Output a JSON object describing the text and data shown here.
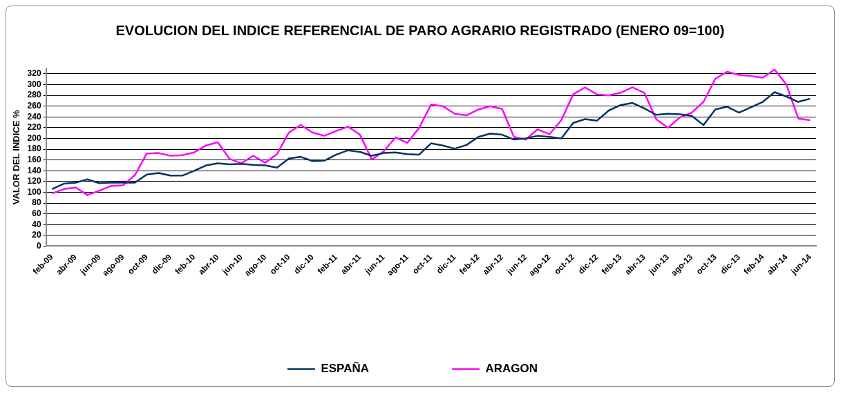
{
  "chart_data": {
    "type": "line",
    "title": "EVOLUCION DEL INDICE REFERENCIAL DE PARO AGRARIO REGISTRADO (ENERO 09=100)",
    "ylabel": "VALOR DEL INDICE %",
    "categories": [
      "feb-09",
      null,
      "abr-09",
      null,
      "jun-09",
      null,
      "ago-09",
      null,
      "oct-09",
      null,
      "dic-09",
      null,
      "feb-10",
      null,
      "abr-10",
      null,
      "jun-10",
      null,
      "ago-10",
      null,
      "oct-10",
      null,
      "dic-10",
      null,
      "feb-11",
      null,
      "abr-11",
      null,
      "jun-11",
      null,
      "ago-11",
      null,
      "oct-11",
      null,
      "dic-11",
      null,
      "feb-12",
      null,
      "abr-12",
      null,
      "jun-12",
      null,
      "ago-12",
      null,
      "oct-12",
      null,
      "dic-12",
      null,
      "feb-13",
      null,
      "abr-13",
      null,
      "jun-13",
      null,
      "ago-13",
      null,
      "oct-13",
      null,
      "dic-13",
      null,
      "feb-14",
      null,
      "abr-14",
      null,
      "jun-14"
    ],
    "series": [
      {
        "name": "ESPAÑA",
        "color": "#003366",
        "values": [
          106,
          116,
          118,
          124,
          117,
          118,
          118,
          118,
          133,
          136,
          131,
          131,
          140,
          150,
          154,
          152,
          153,
          151,
          150,
          146,
          163,
          166,
          158,
          159,
          170,
          178,
          175,
          168,
          173,
          174,
          171,
          170,
          191,
          187,
          181,
          188,
          203,
          209,
          207,
          198,
          200,
          205,
          203,
          200,
          229,
          236,
          233,
          252,
          262,
          266,
          256,
          244,
          246,
          245,
          242,
          225,
          254,
          259,
          248,
          258,
          268,
          286,
          278,
          268,
          274
        ]
      },
      {
        "name": "ARAGON",
        "color": "#ff00ff",
        "values": [
          98,
          106,
          109,
          95,
          103,
          112,
          113,
          132,
          172,
          173,
          168,
          169,
          174,
          187,
          193,
          162,
          154,
          168,
          155,
          171,
          211,
          225,
          211,
          205,
          214,
          222,
          207,
          161,
          176,
          202,
          192,
          220,
          263,
          260,
          246,
          243,
          254,
          260,
          255,
          203,
          198,
          217,
          208,
          234,
          282,
          295,
          282,
          280,
          285,
          295,
          285,
          236,
          220,
          239,
          248,
          268,
          311,
          324,
          318,
          316,
          313,
          328,
          300,
          237,
          234
        ]
      }
    ],
    "ylim": [
      0,
      330
    ],
    "yticks": [
      0,
      20,
      40,
      60,
      80,
      100,
      120,
      140,
      160,
      180,
      200,
      220,
      240,
      260,
      280,
      300,
      320
    ],
    "grid": "y",
    "legend": "bottom",
    "marker": "none",
    "line_style": "solid"
  }
}
